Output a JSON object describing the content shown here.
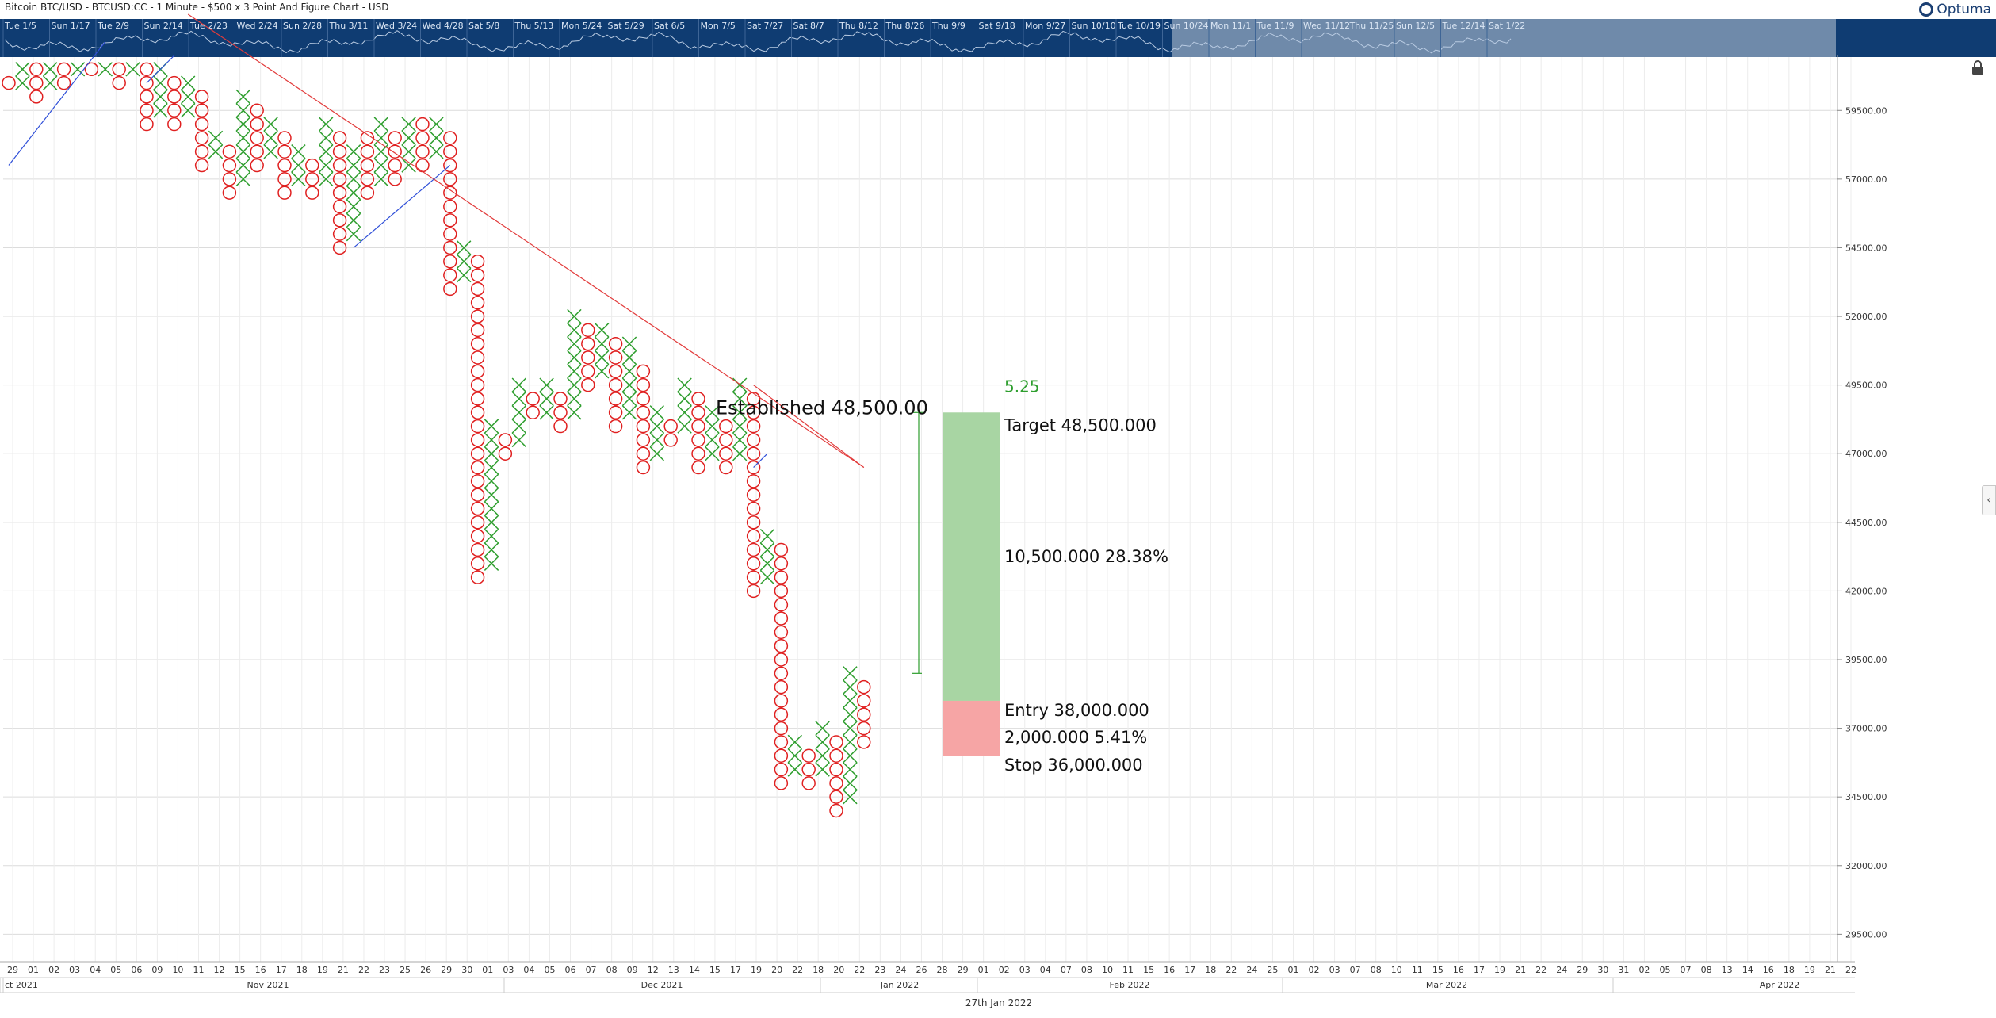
{
  "header": {
    "title": "Bitcoin BTC/USD - BTCUSD:CC - 1 Minute - $500 x 3 Point And Figure Chart - USD",
    "brand": "Optuma"
  },
  "navigator": {
    "labels": [
      "Tue 1/5",
      "Sun 1/17",
      "Tue 2/9",
      "Sun 2/14",
      "Tue 2/23",
      "Wed 2/24",
      "Sun 2/28",
      "Thu 3/11",
      "Wed 3/24",
      "Wed 4/28",
      "Sat 5/8",
      "Thu 5/13",
      "Mon 5/24",
      "Sat 5/29",
      "Sat 6/5",
      "Mon 7/5",
      "Sat 7/27",
      "Sat 8/7",
      "Thu 8/12",
      "Thu 8/26",
      "Thu 9/9",
      "Sat 9/18",
      "Mon 9/27",
      "Sun 10/10",
      "Tue 10/19",
      "Sun 10/24",
      "Mon 11/1",
      "Tue 11/9",
      "Wed 11/12",
      "Thu 11/25",
      "Sun 12/5",
      "Tue 12/14",
      "Sat 1/22"
    ]
  },
  "x_axis": {
    "day_ticks": [
      "29",
      "01",
      "02",
      "03",
      "04",
      "05",
      "06",
      "09",
      "10",
      "11",
      "12",
      "15",
      "16",
      "17",
      "18",
      "19",
      "21",
      "22",
      "23",
      "25",
      "26",
      "29",
      "30",
      "01",
      "03",
      "04",
      "05",
      "06",
      "07",
      "08",
      "09",
      "12",
      "13",
      "14",
      "15",
      "17",
      "19",
      "20",
      "22",
      "18",
      "20",
      "22",
      "23",
      "24",
      "26",
      "28",
      "29",
      "01",
      "02",
      "03",
      "04",
      "07",
      "08",
      "10",
      "11",
      "15",
      "16",
      "17",
      "18",
      "22",
      "24",
      "25",
      "01",
      "02",
      "03",
      "07",
      "08",
      "10",
      "11",
      "15",
      "16",
      "17",
      "19",
      "21",
      "22",
      "24",
      "29",
      "30",
      "31",
      "02",
      "05",
      "07",
      "08",
      "13",
      "14",
      "16",
      "18",
      "19",
      "21",
      "22"
    ],
    "months": [
      "ct 2021",
      "Nov 2021",
      "Dec 2021",
      "Jan 2022",
      "Feb 2022",
      "Mar 2022",
      "Apr 2022"
    ],
    "footer_date": "27th Jan 2022"
  },
  "chart_data": {
    "type": "point-and-figure",
    "title": "Bitcoin BTC/USD - BTCUSD:CC - 1 Minute - $500 x 3 Point And Figure Chart - USD",
    "box_size": 500,
    "reversal": 3,
    "y_axis": {
      "ticks": [
        29500,
        32000,
        34500,
        37000,
        39500,
        42000,
        44500,
        47000,
        49500,
        52000,
        54500,
        57000,
        59500
      ],
      "ylim": [
        28500,
        61500
      ]
    },
    "colors": {
      "x": "#2e9e2e",
      "o": "#e02020",
      "trend_red": "#e23b3b",
      "trend_blue": "#2f4fd8",
      "target_zone": "#a8d5a3",
      "stop_zone": "#f6a5a5",
      "navigator": "#0f3c72"
    },
    "columns": [
      {
        "t": "O",
        "from": 60500,
        "to": 60500
      },
      {
        "t": "X",
        "from": 60500,
        "to": 61000
      },
      {
        "t": "O",
        "from": 60000,
        "to": 61000
      },
      {
        "t": "X",
        "from": 60500,
        "to": 61000
      },
      {
        "t": "O",
        "from": 60500,
        "to": 61000
      },
      {
        "t": "X",
        "from": 61000,
        "to": 61000
      },
      {
        "t": "O",
        "from": 61000,
        "to": 61000
      },
      {
        "t": "X",
        "from": 61000,
        "to": 61000
      },
      {
        "t": "O",
        "from": 60500,
        "to": 61000
      },
      {
        "t": "X",
        "from": 61000,
        "to": 61000
      },
      {
        "t": "O",
        "from": 59000,
        "to": 61000
      },
      {
        "t": "X",
        "from": 59500,
        "to": 61000
      },
      {
        "t": "O",
        "from": 59000,
        "to": 60500
      },
      {
        "t": "X",
        "from": 59500,
        "to": 60500
      },
      {
        "t": "O",
        "from": 57500,
        "to": 60000
      },
      {
        "t": "X",
        "from": 58000,
        "to": 58500
      },
      {
        "t": "O",
        "from": 56500,
        "to": 58000
      },
      {
        "t": "X",
        "from": 57000,
        "to": 60000
      },
      {
        "t": "O",
        "from": 57500,
        "to": 59500
      },
      {
        "t": "X",
        "from": 58000,
        "to": 59000
      },
      {
        "t": "O",
        "from": 56500,
        "to": 58500
      },
      {
        "t": "X",
        "from": 57000,
        "to": 58000
      },
      {
        "t": "O",
        "from": 56500,
        "to": 57500
      },
      {
        "t": "X",
        "from": 57000,
        "to": 59000
      },
      {
        "t": "O",
        "from": 54500,
        "to": 58500
      },
      {
        "t": "X",
        "from": 55000,
        "to": 58000
      },
      {
        "t": "O",
        "from": 56500,
        "to": 58500
      },
      {
        "t": "X",
        "from": 57000,
        "to": 59000
      },
      {
        "t": "O",
        "from": 57000,
        "to": 58500
      },
      {
        "t": "X",
        "from": 57500,
        "to": 59000
      },
      {
        "t": "O",
        "from": 57500,
        "to": 59000
      },
      {
        "t": "X",
        "from": 58000,
        "to": 59000
      },
      {
        "t": "O",
        "from": 53000,
        "to": 58500
      },
      {
        "t": "X",
        "from": 53500,
        "to": 54500
      },
      {
        "t": "O",
        "from": 42500,
        "to": 54000
      },
      {
        "t": "X",
        "from": 43000,
        "to": 48000
      },
      {
        "t": "O",
        "from": 47000,
        "to": 47500
      },
      {
        "t": "X",
        "from": 47500,
        "to": 49500
      },
      {
        "t": "O",
        "from": 48500,
        "to": 49000
      },
      {
        "t": "X",
        "from": 48500,
        "to": 49500
      },
      {
        "t": "O",
        "from": 48000,
        "to": 49000
      },
      {
        "t": "X",
        "from": 48500,
        "to": 52000
      },
      {
        "t": "O",
        "from": 49500,
        "to": 51500
      },
      {
        "t": "X",
        "from": 50000,
        "to": 51500
      },
      {
        "t": "O",
        "from": 48000,
        "to": 51000
      },
      {
        "t": "X",
        "from": 48500,
        "to": 51000
      },
      {
        "t": "O",
        "from": 46500,
        "to": 50000
      },
      {
        "t": "X",
        "from": 47000,
        "to": 48500
      },
      {
        "t": "O",
        "from": 47500,
        "to": 48000
      },
      {
        "t": "X",
        "from": 48000,
        "to": 49500
      },
      {
        "t": "O",
        "from": 46500,
        "to": 49000
      },
      {
        "t": "X",
        "from": 47000,
        "to": 48500
      },
      {
        "t": "O",
        "from": 46500,
        "to": 48000
      },
      {
        "t": "X",
        "from": 47000,
        "to": 49500
      },
      {
        "t": "O",
        "from": 42000,
        "to": 49000
      },
      {
        "t": "X",
        "from": 42500,
        "to": 44000
      },
      {
        "t": "O",
        "from": 35000,
        "to": 43500
      },
      {
        "t": "X",
        "from": 35500,
        "to": 36500
      },
      {
        "t": "O",
        "from": 35000,
        "to": 36000
      },
      {
        "t": "X",
        "from": 35500,
        "to": 37000
      },
      {
        "t": "O",
        "from": 34000,
        "to": 36500
      },
      {
        "t": "X",
        "from": 34500,
        "to": 39000
      },
      {
        "t": "O",
        "from": 36500,
        "to": 38500
      }
    ],
    "trendlines": [
      {
        "color": "red",
        "from": {
          "col": 13,
          "val": 63000
        },
        "to": {
          "col": 62,
          "val": 46500
        }
      },
      {
        "color": "red",
        "from": {
          "col": 54,
          "val": 49500
        },
        "to": {
          "col": 62,
          "val": 46500
        }
      },
      {
        "color": "blue",
        "from": {
          "col": 0,
          "val": 57500
        },
        "to": {
          "col": 7,
          "val": 62000
        }
      },
      {
        "color": "blue",
        "from": {
          "col": 10,
          "val": 60500
        },
        "to": {
          "col": 12,
          "val": 61500
        }
      },
      {
        "color": "blue",
        "from": {
          "col": 25,
          "val": 54500
        },
        "to": {
          "col": 32,
          "val": 57500
        }
      },
      {
        "color": "blue",
        "from": {
          "col": 54,
          "val": 46500
        },
        "to": {
          "col": 55,
          "val": 47000
        }
      }
    ],
    "projection": {
      "count_label": "5.25",
      "established_label": "Established 48,500.00",
      "target_label": "Target",
      "target_value": "48,500.000",
      "gain_label": "10,500.000",
      "gain_pct": "28.38%",
      "entry_label": "Entry",
      "entry_value": "38,000.000",
      "risk_label": "2,000.000",
      "risk_pct": "5.41%",
      "stop_label": "Stop",
      "stop_value": "36,000.000",
      "target": 48500,
      "entry": 38000,
      "stop": 36000,
      "count_column_low": 39000
    }
  }
}
